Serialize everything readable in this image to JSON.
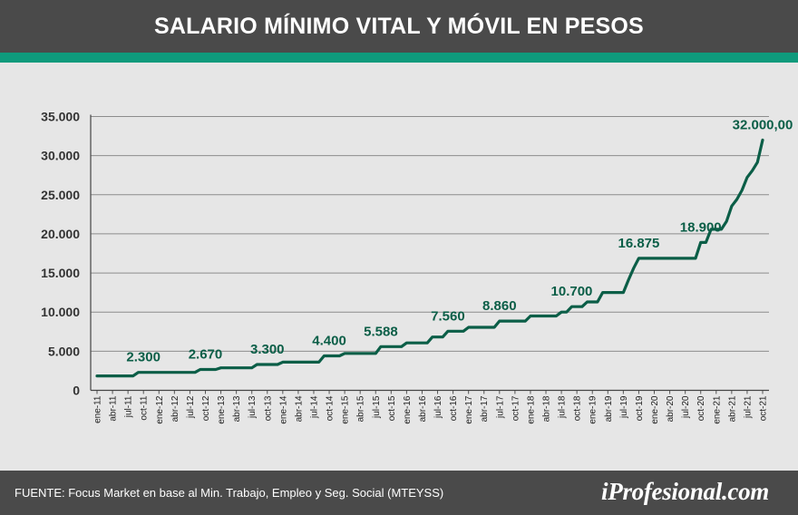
{
  "header": {
    "title": "SALARIO MÍNIMO VITAL Y MÓVIL EN PESOS"
  },
  "footer": {
    "source": "FUENTE: Focus Market en base al Min. Trabajo, Empleo y Seg. Social (MTEYSS)",
    "brand": "iProfesional.com"
  },
  "colors": {
    "header_bg": "#4a4a4a",
    "accent": "#0e9a7c",
    "line": "#0b5e47",
    "background": "#e6e6e6"
  },
  "chart_data": {
    "type": "line",
    "title": "SALARIO MÍNIMO VITAL Y MÓVIL EN PESOS",
    "xlabel": "",
    "ylabel": "",
    "ylim": [
      0,
      35000
    ],
    "yticks": [
      0,
      5000,
      10000,
      15000,
      20000,
      25000,
      30000,
      35000
    ],
    "ytick_labels": [
      "0",
      "5.000",
      "10.000",
      "15.000",
      "20.000",
      "25.000",
      "30.000",
      "35.000"
    ],
    "x_labels": [
      "ene-11",
      "abr-11",
      "jul-11",
      "oct-11",
      "ene-12",
      "abr-12",
      "jul-12",
      "oct-12",
      "ene-13",
      "abr-13",
      "jul-13",
      "oct-13",
      "ene-14",
      "abr-14",
      "jul-14",
      "oct-14",
      "ene-15",
      "abr-15",
      "jul-15",
      "oct-15",
      "ene-16",
      "abr-16",
      "jul-16",
      "oct-16",
      "ene-17",
      "abr-17",
      "jul-17",
      "oct-17",
      "ene-18",
      "abr-18",
      "jul-18",
      "oct-18",
      "ene-19",
      "abr-19",
      "jul-19",
      "oct-19",
      "ene-20",
      "abr-20",
      "jul-20",
      "oct-20",
      "ene-21",
      "abr-21",
      "jul-21",
      "oct-21"
    ],
    "grid": true,
    "legend": "none",
    "series": [
      {
        "points": [
          [
            "2011-01",
            1840
          ],
          [
            "2011-08",
            1840
          ],
          [
            "2011-09",
            2300
          ],
          [
            "2012-08",
            2300
          ],
          [
            "2012-09",
            2670
          ],
          [
            "2012-12",
            2670
          ],
          [
            "2013-01",
            2875
          ],
          [
            "2013-07",
            2875
          ],
          [
            "2013-08",
            3300
          ],
          [
            "2013-12",
            3300
          ],
          [
            "2014-01",
            3600
          ],
          [
            "2014-08",
            3600
          ],
          [
            "2014-09",
            4400
          ],
          [
            "2014-12",
            4400
          ],
          [
            "2015-01",
            4716
          ],
          [
            "2015-07",
            4716
          ],
          [
            "2015-08",
            5588
          ],
          [
            "2015-12",
            5588
          ],
          [
            "2016-01",
            6060
          ],
          [
            "2016-05",
            6060
          ],
          [
            "2016-06",
            6810
          ],
          [
            "2016-08",
            6810
          ],
          [
            "2016-09",
            7560
          ],
          [
            "2016-12",
            7560
          ],
          [
            "2017-01",
            8060
          ],
          [
            "2017-06",
            8060
          ],
          [
            "2017-07",
            8860
          ],
          [
            "2017-12",
            8860
          ],
          [
            "2018-01",
            9500
          ],
          [
            "2018-06",
            9500
          ],
          [
            "2018-07",
            10000
          ],
          [
            "2018-08",
            10000
          ],
          [
            "2018-09",
            10700
          ],
          [
            "2018-11",
            10700
          ],
          [
            "2018-12",
            11300
          ],
          [
            "2019-02",
            11300
          ],
          [
            "2019-03",
            12500
          ],
          [
            "2019-07",
            12500
          ],
          [
            "2019-08",
            14125
          ],
          [
            "2019-09",
            15625
          ],
          [
            "2019-10",
            16875
          ],
          [
            "2020-09",
            16875
          ],
          [
            "2020-10",
            18900
          ],
          [
            "2020-11",
            18900
          ],
          [
            "2020-12",
            20587.5
          ],
          [
            "2021-02",
            20587.5
          ],
          [
            "2021-03",
            21600
          ],
          [
            "2021-04",
            23544
          ],
          [
            "2021-05",
            24408
          ],
          [
            "2021-06",
            25572
          ],
          [
            "2021-07",
            27216
          ],
          [
            "2021-08",
            28080
          ],
          [
            "2021-09",
            29160
          ],
          [
            "2021-10",
            32000
          ]
        ]
      }
    ],
    "data_labels": [
      {
        "x": "2011-10",
        "y": 2300,
        "text": "2.300"
      },
      {
        "x": "2012-10",
        "y": 2670,
        "text": "2.670"
      },
      {
        "x": "2013-10",
        "y": 3300,
        "text": "3.300"
      },
      {
        "x": "2014-10",
        "y": 4400,
        "text": "4.400"
      },
      {
        "x": "2015-08",
        "y": 5588,
        "text": "5.588"
      },
      {
        "x": "2016-09",
        "y": 7560,
        "text": "7.560"
      },
      {
        "x": "2017-07",
        "y": 8860,
        "text": "8.860"
      },
      {
        "x": "2018-09",
        "y": 10700,
        "text": "10.700"
      },
      {
        "x": "2019-10",
        "y": 16875,
        "text": "16.875"
      },
      {
        "x": "2020-10",
        "y": 18900,
        "text": "18.900"
      },
      {
        "x": "2021-10",
        "y": 32000,
        "text": "32.000,00"
      }
    ]
  }
}
